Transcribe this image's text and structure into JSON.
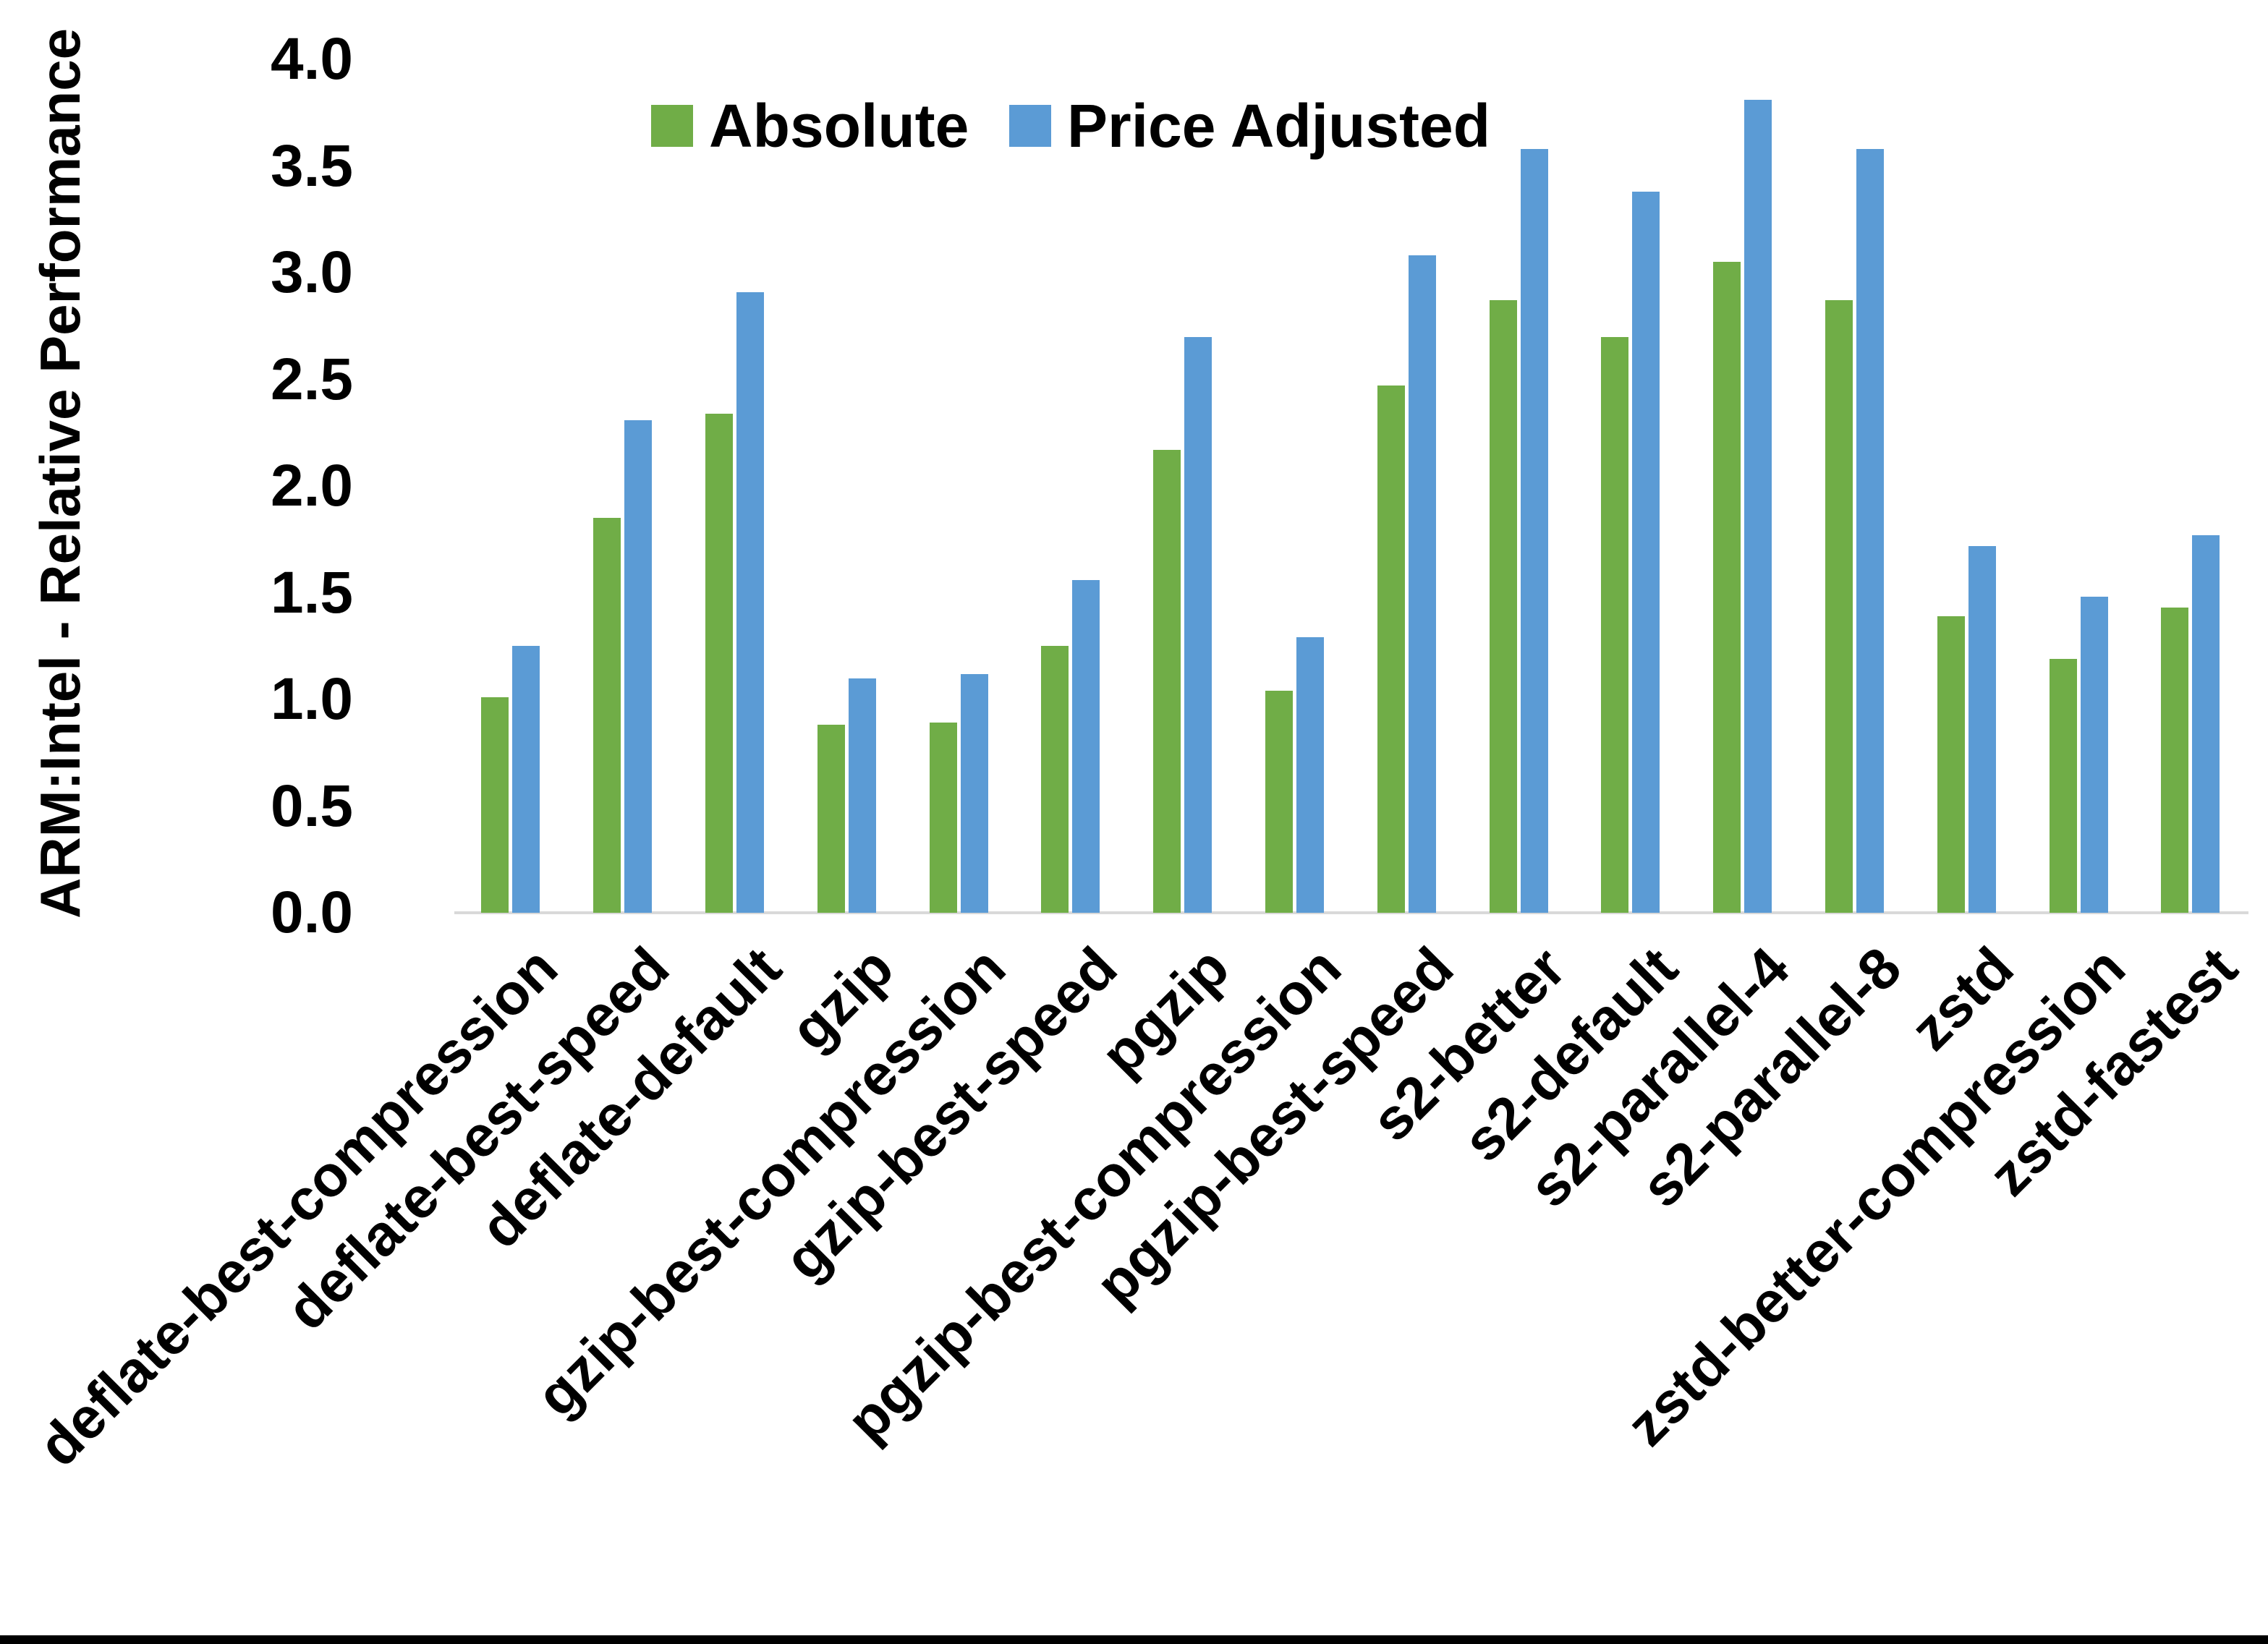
{
  "page": {
    "background": "#FFFFFF",
    "bottom_bar_color": "#000000"
  },
  "axis": {
    "line_color": "#D9D9D9",
    "text_color": "#000000"
  },
  "chart_data": {
    "type": "bar",
    "title": "",
    "xlabel": "",
    "ylabel": "ARM:Intel - Relative Performance",
    "ylim": [
      0.0,
      4.0
    ],
    "ytick_step": 0.5,
    "ytick_labels": [
      "0.0",
      "0.5",
      "1.0",
      "1.5",
      "2.0",
      "2.5",
      "3.0",
      "3.5",
      "4.0"
    ],
    "grid": false,
    "legend_position": "top-center",
    "categories": [
      "deflate-best-compression",
      "deflate-best-speed",
      "deflate-default",
      "gzip",
      "gzip-best-compression",
      "gzip-best-speed",
      "pgzip",
      "pgzip-best-compression",
      "pgzip-best-speed",
      "s2-better",
      "s2-default",
      "s2-parallel-4",
      "s2-parallel-8",
      "zstd",
      "zstd-better-compression",
      "zstd-fastest"
    ],
    "series": [
      {
        "name": "Absolute",
        "color": "#70AD47",
        "values": [
          1.01,
          1.85,
          2.34,
          0.88,
          0.89,
          1.25,
          2.17,
          1.04,
          2.47,
          2.87,
          2.7,
          3.05,
          2.87,
          1.39,
          1.19,
          1.43
        ]
      },
      {
        "name": "Price Adjusted",
        "color": "#5B9BD5",
        "values": [
          1.25,
          2.31,
          2.91,
          1.1,
          1.12,
          1.56,
          2.7,
          1.29,
          3.08,
          3.58,
          3.38,
          3.81,
          3.58,
          1.72,
          1.48,
          1.77
        ]
      }
    ]
  }
}
